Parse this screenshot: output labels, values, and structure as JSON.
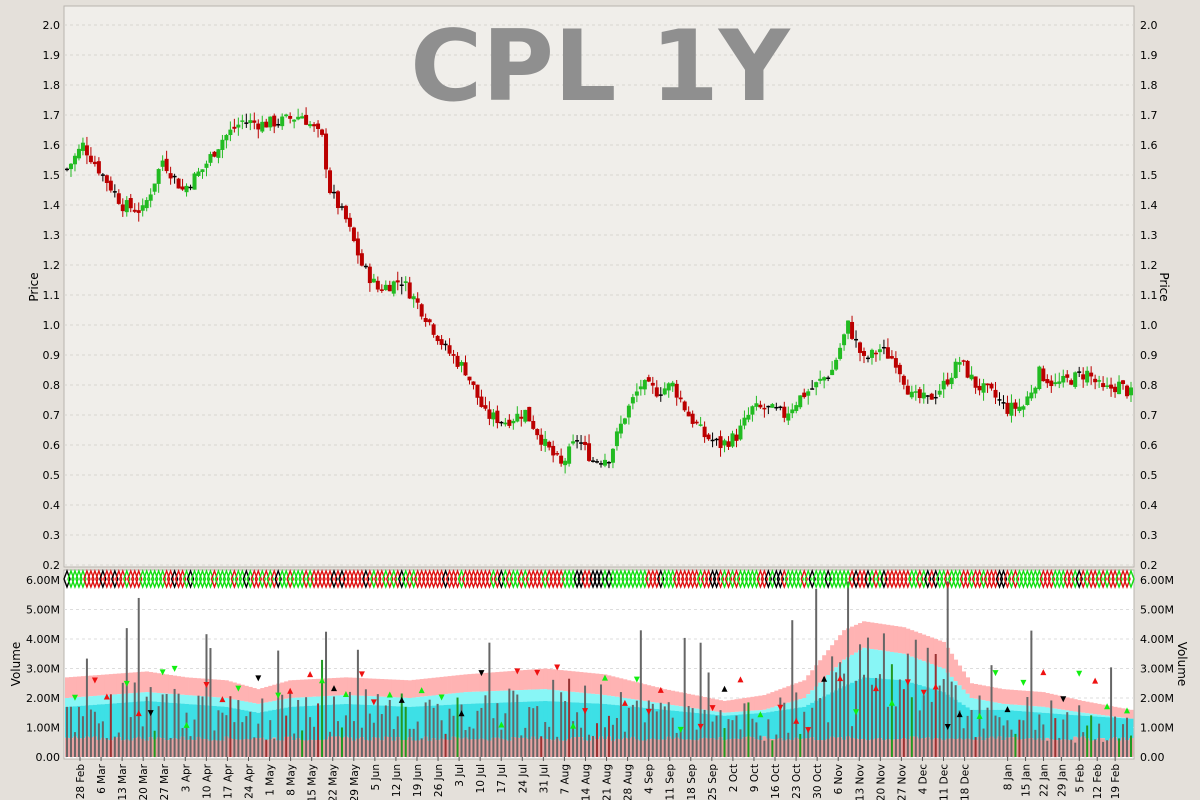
{
  "chart_data": [
    {
      "type": "candlestick",
      "title": "CPL 1Y",
      "ylabel": "Price",
      "ylim": [
        0.2,
        2.05
      ],
      "yticks": [
        "0.2",
        "0.3",
        "0.4",
        "0.5",
        "0.6",
        "0.7",
        "0.8",
        "0.9",
        "1.0",
        "1.1",
        "1.2",
        "1.3",
        "1.4",
        "1.5",
        "1.6",
        "1.7",
        "1.8",
        "1.9",
        "2.0"
      ],
      "grid": true,
      "colors": {
        "up": "#22bb22",
        "down": "#bb0000",
        "flat": "#000000"
      },
      "close_anchors": [
        [
          0,
          1.52
        ],
        [
          4,
          1.6
        ],
        [
          9,
          1.5
        ],
        [
          14,
          1.4
        ],
        [
          19,
          1.38
        ],
        [
          24,
          1.55
        ],
        [
          29,
          1.45
        ],
        [
          34,
          1.52
        ],
        [
          39,
          1.62
        ],
        [
          44,
          1.68
        ],
        [
          49,
          1.67
        ],
        [
          54,
          1.68
        ],
        [
          59,
          1.7
        ],
        [
          64,
          1.62
        ],
        [
          66,
          1.45
        ],
        [
          70,
          1.35
        ],
        [
          74,
          1.2
        ],
        [
          78,
          1.12
        ],
        [
          84,
          1.15
        ],
        [
          90,
          1.03
        ],
        [
          95,
          0.92
        ],
        [
          100,
          0.85
        ],
        [
          105,
          0.7
        ],
        [
          110,
          0.68
        ],
        [
          115,
          0.71
        ],
        [
          120,
          0.6
        ],
        [
          124,
          0.53
        ],
        [
          128,
          0.62
        ],
        [
          132,
          0.55
        ],
        [
          136,
          0.56
        ],
        [
          140,
          0.7
        ],
        [
          144,
          0.8
        ],
        [
          148,
          0.78
        ],
        [
          152,
          0.8
        ],
        [
          156,
          0.7
        ],
        [
          160,
          0.63
        ],
        [
          164,
          0.6
        ],
        [
          168,
          0.63
        ],
        [
          172,
          0.72
        ],
        [
          176,
          0.72
        ],
        [
          180,
          0.7
        ],
        [
          184,
          0.76
        ],
        [
          188,
          0.8
        ],
        [
          192,
          0.85
        ],
        [
          196,
          1.0
        ],
        [
          200,
          0.88
        ],
        [
          204,
          0.92
        ],
        [
          208,
          0.88
        ],
        [
          212,
          0.76
        ],
        [
          216,
          0.75
        ],
        [
          220,
          0.8
        ],
        [
          224,
          0.88
        ],
        [
          228,
          0.8
        ],
        [
          232,
          0.77
        ],
        [
          236,
          0.72
        ],
        [
          240,
          0.73
        ],
        [
          244,
          0.84
        ],
        [
          248,
          0.8
        ],
        [
          252,
          0.82
        ],
        [
          256,
          0.84
        ],
        [
          260,
          0.78
        ],
        [
          264,
          0.8
        ],
        [
          267,
          0.77
        ]
      ],
      "volume_spike_series_note": "",
      "label_visible_none": ""
    },
    {
      "type": "bar",
      "ylabel": "Volume",
      "ylim": [
        0,
        6.1
      ],
      "yticks": [
        "0.00",
        "1.00M",
        "2.00M",
        "3.00M",
        "4.00M",
        "5.00M",
        "6.00M"
      ],
      "grid": true,
      "date_labels": [
        "28 Feb",
        "6 Mar",
        "13 Mar",
        "20 Mar",
        "27 Mar",
        "3 Apr",
        "10 Apr",
        "17 Apr",
        "24 Apr",
        "1 May",
        "8 May",
        "15 May",
        "22 May",
        "29 May",
        "5 Jun",
        "12 Jun",
        "19 Jun",
        "26 Jun",
        "3 Jul",
        "10 Jul",
        "17 Jul",
        "24 Jul",
        "31 Jul",
        "7 Aug",
        "14 Aug",
        "21 Aug",
        "28 Aug",
        "4 Sep",
        "11 Sep",
        "18 Sep",
        "25 Sep",
        "2 Oct",
        "9 Oct",
        "16 Oct",
        "23 Oct",
        "30 Oct",
        "6 Nov",
        "13 Nov",
        "20 Nov",
        "27 Nov",
        "4 Dec",
        "11 Dec",
        "18 Dec",
        "8 Jan",
        "15 Jan",
        "22 Jan",
        "29 Jan",
        "5 Feb",
        "12 Feb",
        "19 Feb"
      ],
      "band_anchors": [
        [
          0,
          1.3,
          2.0,
          2.7
        ],
        [
          10,
          1.4,
          2.1,
          2.8
        ],
        [
          20,
          1.5,
          2.2,
          2.9
        ],
        [
          30,
          1.4,
          2.1,
          2.7
        ],
        [
          40,
          1.3,
          2.0,
          2.6
        ],
        [
          48,
          1.1,
          1.8,
          2.3
        ],
        [
          56,
          1.3,
          2.0,
          2.6
        ],
        [
          70,
          1.4,
          2.1,
          2.7
        ],
        [
          86,
          1.3,
          2.0,
          2.6
        ],
        [
          100,
          1.4,
          2.2,
          2.8
        ],
        [
          120,
          1.5,
          2.3,
          3.0
        ],
        [
          135,
          1.4,
          2.1,
          2.8
        ],
        [
          150,
          1.2,
          1.8,
          2.3
        ],
        [
          165,
          1.0,
          1.5,
          1.9
        ],
        [
          175,
          1.1,
          1.6,
          2.1
        ],
        [
          185,
          1.3,
          2.0,
          2.6
        ],
        [
          195,
          2.0,
          3.3,
          4.3
        ],
        [
          200,
          2.3,
          3.7,
          4.6
        ],
        [
          210,
          2.2,
          3.5,
          4.4
        ],
        [
          220,
          1.8,
          3.0,
          3.9
        ],
        [
          227,
          1.2,
          2.0,
          2.5
        ],
        [
          235,
          1.2,
          1.8,
          2.3
        ],
        [
          245,
          1.1,
          1.7,
          2.2
        ],
        [
          255,
          1.0,
          1.5,
          1.9
        ],
        [
          267,
          0.9,
          1.3,
          1.6
        ]
      ]
    }
  ]
}
